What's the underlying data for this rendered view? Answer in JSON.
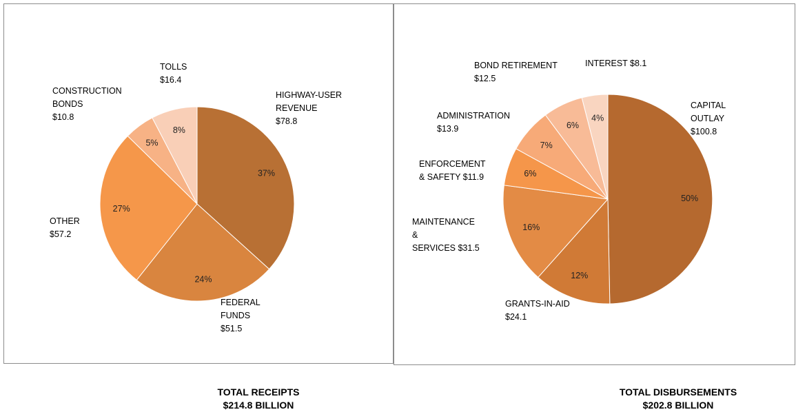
{
  "chart_data": [
    {
      "type": "pie",
      "series": [
        {
          "label": "HIGHWAY-USER\nREVENUE\n$78.8",
          "value": 78.8,
          "pct": "37%",
          "color": "#b87034"
        },
        {
          "label": "FEDERAL\nFUNDS\n$51.5",
          "value": 51.5,
          "pct": "24%",
          "color": "#d9853f"
        },
        {
          "label": "OTHER\n$57.2",
          "value": 57.2,
          "pct": "27%",
          "color": "#f5974a"
        },
        {
          "label": "CONSTRUCTION\nBONDS\n$10.8",
          "value": 10.8,
          "pct": "5%",
          "color": "#f7b285"
        },
        {
          "label": "TOLLS\n$16.4",
          "value": 16.4,
          "pct": "8%",
          "color": "#f9cfb7"
        }
      ],
      "total_title": "TOTAL RECEIPTS",
      "total_value": "$214.8 BILLION"
    },
    {
      "type": "pie",
      "series": [
        {
          "label": "CAPITAL\nOUTLAY\n$100.8",
          "value": 100.8,
          "pct": "50%",
          "color": "#b5692f"
        },
        {
          "label": "GRANTS-IN-AID\n$24.1",
          "value": 24.1,
          "pct": "12%",
          "color": "#d07a36"
        },
        {
          "label": "MAINTENANCE\n&\nSERVICES $31.5",
          "value": 31.5,
          "pct": "16%",
          "color": "#e38b45"
        },
        {
          "label": "ENFORCEMENT\n& SAFETY $11.9",
          "value": 11.9,
          "pct": "6%",
          "color": "#f5964a"
        },
        {
          "label": "ADMINISTRATION\n$13.9",
          "value": 13.9,
          "pct": "7%",
          "color": "#f7aa78"
        },
        {
          "label": "BOND RETIREMENT\n$12.5",
          "value": 12.5,
          "pct": "6%",
          "color": "#f8bb97"
        },
        {
          "label": "INTEREST $8.1",
          "value": 8.1,
          "pct": "4%",
          "color": "#f9d5c0"
        }
      ],
      "total_title": "TOTAL DISBURSEMENTS",
      "total_value": "$202.8 BILLION"
    }
  ]
}
